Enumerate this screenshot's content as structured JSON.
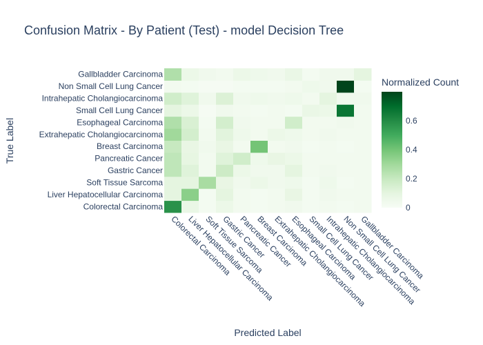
{
  "chart_data": {
    "type": "heatmap",
    "title": "Confusion Matrix - By Patient (Test) - model Decision Tree",
    "xlabel": "Predicted Label",
    "ylabel": "True Label",
    "colorbar_title": "Normalized Count",
    "colorbar_ticks": [
      "0",
      "0.2",
      "0.4",
      "0.6"
    ],
    "zmin": 0,
    "zmax": 0.8,
    "colorscale": [
      "#f7fcf5",
      "#e5f5e0",
      "#c7e9c0",
      "#a1d99b",
      "#74c476",
      "#41ab5d",
      "#238b45",
      "#006d2c",
      "#00441b"
    ],
    "x_categories": [
      "Colorectal Carcinoma",
      "Liver Hepatocellular Carcinoma",
      "Soft Tissue Sarcoma",
      "Gastric Cancer",
      "Pancreatic Cancer",
      "Breast Carcinoma",
      "Extrahepatic Cholangiocarcinoma",
      "Esophageal Carcinoma",
      "Small Cell Lung Cancer",
      "Intrahepatic Cholangiocarcinoma",
      "Non Small Cell Lung Cancer",
      "Gallbladder Carcinoma"
    ],
    "y_categories": [
      "Colorectal Carcinoma",
      "Liver Hepatocellular Carcinoma",
      "Soft Tissue Sarcoma",
      "Gastric Cancer",
      "Pancreatic Cancer",
      "Breast Carcinoma",
      "Extrahepatic Cholangiocarcinoma",
      "Esophageal Carcinoma",
      "Small Cell Lung Cancer",
      "Intrahepatic Cholangiocarcinoma",
      "Non Small Cell Lung Cancer",
      "Gallbladder Carcinoma"
    ],
    "z": [
      [
        0.58,
        0.07,
        0.02,
        0.06,
        0.03,
        0.02,
        0.03,
        0.04,
        0.02,
        0.03,
        0.02,
        0.03
      ],
      [
        0.1,
        0.35,
        0.02,
        0.1,
        0.03,
        0.02,
        0.03,
        0.08,
        0.02,
        0.04,
        0.03,
        0.03
      ],
      [
        0.1,
        0.1,
        0.28,
        0.08,
        0.04,
        0.06,
        0.04,
        0.05,
        0.02,
        0.05,
        0.02,
        0.03
      ],
      [
        0.22,
        0.12,
        0.03,
        0.18,
        0.06,
        0.04,
        0.04,
        0.1,
        0.03,
        0.04,
        0.03,
        0.03
      ],
      [
        0.22,
        0.09,
        0.03,
        0.12,
        0.17,
        0.05,
        0.08,
        0.06,
        0.03,
        0.03,
        0.03,
        0.03
      ],
      [
        0.2,
        0.08,
        0.04,
        0.08,
        0.03,
        0.4,
        0.03,
        0.04,
        0.02,
        0.03,
        0.02,
        0.03
      ],
      [
        0.3,
        0.16,
        0.03,
        0.11,
        0.05,
        0.03,
        0.06,
        0.05,
        0.03,
        0.04,
        0.03,
        0.03
      ],
      [
        0.26,
        0.14,
        0.02,
        0.16,
        0.04,
        0.03,
        0.03,
        0.17,
        0.03,
        0.03,
        0.04,
        0.03
      ],
      [
        0.1,
        0.06,
        0.01,
        0.04,
        0.03,
        0.02,
        0.03,
        0.02,
        0.07,
        0.06,
        0.67,
        0.03
      ],
      [
        0.17,
        0.12,
        0.04,
        0.13,
        0.04,
        0.05,
        0.04,
        0.05,
        0.03,
        0.1,
        0.04,
        0.04
      ],
      [
        0.03,
        0.02,
        0.01,
        0.01,
        0.02,
        0.02,
        0.02,
        0.03,
        0.05,
        0.04,
        0.8,
        0.02
      ],
      [
        0.26,
        0.06,
        0.04,
        0.03,
        0.06,
        0.05,
        0.04,
        0.07,
        0.02,
        0.04,
        0.04,
        0.1
      ]
    ]
  }
}
